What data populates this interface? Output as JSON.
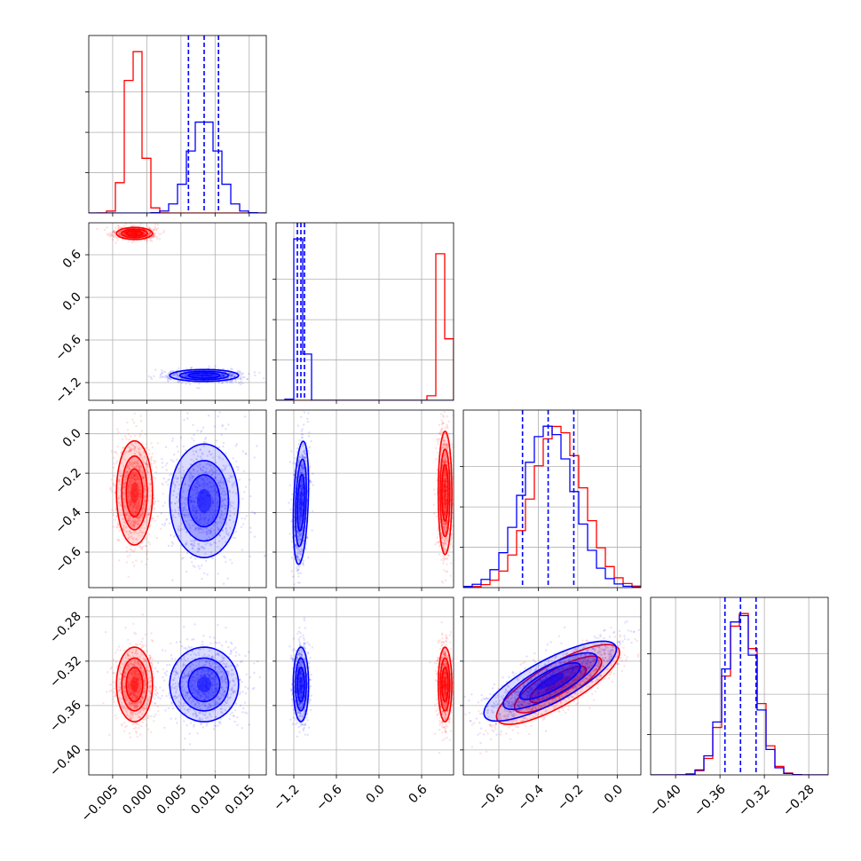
{
  "chart_data": {
    "type": "corner",
    "parameters": 4,
    "grid": true,
    "series": [
      {
        "color": "#ff0000"
      },
      {
        "color": "#0000ff",
        "quantile_lines": true
      }
    ],
    "axes": [
      {
        "range": [
          -0.0085,
          0.0175
        ],
        "ticks": [
          -0.005,
          0.0,
          0.005,
          0.01,
          0.015
        ],
        "tick_labels": [
          "−0.005",
          "0.000",
          "0.005",
          "0.010",
          "0.015"
        ]
      },
      {
        "range": [
          -1.45,
          1.05
        ],
        "ticks": [
          -1.2,
          -0.6,
          0.0,
          0.6
        ],
        "tick_labels": [
          "−1.2",
          "−0.6",
          "0.0",
          "0.6"
        ]
      },
      {
        "range": [
          -0.78,
          0.12
        ],
        "ticks": [
          -0.6,
          -0.4,
          -0.2,
          0.0
        ],
        "tick_labels": [
          "−0.6",
          "−0.4",
          "−0.2",
          "0.0"
        ]
      },
      {
        "range": [
          -0.4225,
          -0.2625
        ],
        "ticks": [
          -0.4,
          -0.36,
          -0.32,
          -0.28
        ],
        "tick_labels": [
          "−0.40",
          "−0.36",
          "−0.32",
          "−0.28"
        ]
      }
    ],
    "marginals": [
      {
        "param": 0,
        "red": {
          "mean": -0.0018,
          "sd": 0.00115
        },
        "blue": {
          "mean": 0.0084,
          "sd": 0.0021
        },
        "blue_quantiles": [
          0.0061,
          0.0084,
          0.0105
        ]
      },
      {
        "param": 1,
        "red": {
          "mean": 0.9,
          "sd": 0.06
        },
        "blue": {
          "mean": -1.1,
          "sd": 0.05
        },
        "blue_quantiles": [
          -1.15,
          -1.1,
          -1.05
        ]
      },
      {
        "param": 2,
        "red": {
          "mean": -0.3,
          "sd": 0.13
        },
        "blue": {
          "mean": -0.35,
          "sd": 0.13
        },
        "blue_quantiles": [
          -0.48,
          -0.35,
          -0.22
        ]
      },
      {
        "param": 3,
        "red": {
          "mean": -0.3405,
          "sd": 0.014
        },
        "blue": {
          "mean": -0.3415,
          "sd": 0.014
        },
        "blue_quantiles": [
          -0.3555,
          -0.3415,
          -0.3275
        ]
      }
    ],
    "pairs": [
      {
        "x": 0,
        "y": 1,
        "red": {
          "mx": -0.0018,
          "my": 0.9,
          "sx": 0.0011,
          "sy": 0.035,
          "rho": 0
        },
        "blue": {
          "mx": 0.0084,
          "my": -1.1,
          "sx": 0.0021,
          "sy": 0.035,
          "rho": 0
        }
      },
      {
        "x": 0,
        "y": 2,
        "red": {
          "mx": -0.0018,
          "my": -0.3,
          "sx": 0.0011,
          "sy": 0.11,
          "rho": 0
        },
        "blue": {
          "mx": 0.0084,
          "my": -0.34,
          "sx": 0.0021,
          "sy": 0.12,
          "rho": 0
        }
      },
      {
        "x": 1,
        "y": 2,
        "red": {
          "mx": 0.93,
          "my": -0.3,
          "sx": 0.04,
          "sy": 0.13,
          "rho": 0
        },
        "blue": {
          "mx": -1.1,
          "my": -0.35,
          "sx": 0.045,
          "sy": 0.13,
          "rho": 0.3
        }
      },
      {
        "x": 0,
        "y": 3,
        "red": {
          "mx": -0.0018,
          "my": -0.341,
          "sx": 0.0011,
          "sy": 0.014,
          "rho": 0
        },
        "blue": {
          "mx": 0.0084,
          "my": -0.341,
          "sx": 0.0021,
          "sy": 0.014,
          "rho": 0
        }
      },
      {
        "x": 1,
        "y": 3,
        "red": {
          "mx": 0.93,
          "my": -0.341,
          "sx": 0.04,
          "sy": 0.014,
          "rho": 0
        },
        "blue": {
          "mx": -1.1,
          "my": -0.341,
          "sx": 0.045,
          "sy": 0.014,
          "rho": 0
        }
      },
      {
        "x": 2,
        "y": 3,
        "red": {
          "mx": -0.3,
          "my": -0.341,
          "sx": 0.13,
          "sy": 0.015,
          "rho": 0.8
        },
        "blue": {
          "mx": -0.34,
          "my": -0.338,
          "sx": 0.14,
          "sy": 0.015,
          "rho": 0.8
        }
      }
    ]
  }
}
